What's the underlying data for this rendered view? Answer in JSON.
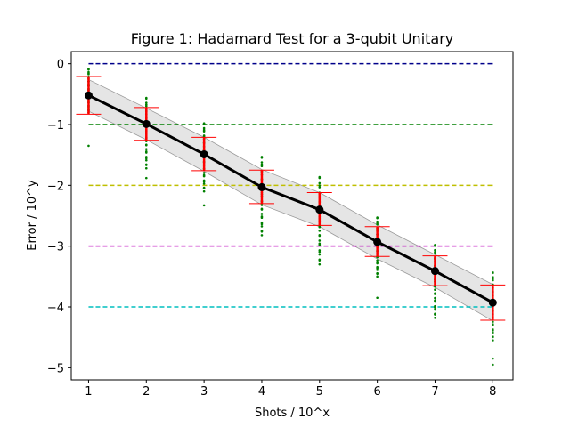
{
  "chart_data": {
    "type": "line",
    "title": "Figure 1: Hadamard Test for a 3-qubit Unitary",
    "xlabel": "Shots / 10^x",
    "ylabel": "Error / 10^y",
    "xlim": [
      0.7,
      8.35
    ],
    "ylim": [
      -5.2,
      0.2
    ],
    "x": [
      1,
      2,
      3,
      4,
      5,
      6,
      7,
      8
    ],
    "x_ticks": [
      1,
      2,
      3,
      4,
      5,
      6,
      7,
      8
    ],
    "y_ticks": [
      0,
      -1,
      -2,
      -3,
      -4,
      -5
    ],
    "y_tick_labels": [
      "0",
      "−1",
      "−2",
      "−3",
      "−4",
      "−5"
    ],
    "grid": false,
    "legend": "none",
    "mean_line": {
      "color": "#000000",
      "values": [
        -0.52,
        -0.99,
        -1.49,
        -2.03,
        -2.4,
        -2.93,
        -3.41,
        -3.93
      ]
    },
    "error_bars": {
      "color": "#ff0000",
      "upper": [
        -0.21,
        -0.72,
        -1.21,
        -1.75,
        -2.12,
        -2.68,
        -3.16,
        -3.64
      ],
      "lower": [
        -0.83,
        -1.26,
        -1.76,
        -2.3,
        -2.66,
        -3.17,
        -3.65,
        -4.22
      ]
    },
    "band": {
      "color": "#d3d3d3",
      "upper": [
        -0.26,
        -0.73,
        -1.21,
        -1.74,
        -2.12,
        -2.65,
        -3.14,
        -3.63
      ],
      "lower": [
        -0.78,
        -1.25,
        -1.77,
        -2.32,
        -2.68,
        -3.21,
        -3.68,
        -4.23
      ]
    },
    "samples": {
      "color": "#008000",
      "columns": [
        {
          "x": 1,
          "min": -0.8,
          "max": -0.08,
          "outliers": [
            -1.35
          ]
        },
        {
          "x": 2,
          "min": -1.72,
          "max": -0.55,
          "outliers": [
            -1.88
          ]
        },
        {
          "x": 3,
          "min": -2.1,
          "max": -0.97,
          "outliers": [
            -2.33
          ]
        },
        {
          "x": 4,
          "min": -2.82,
          "max": -1.52,
          "outliers": []
        },
        {
          "x": 5,
          "min": -3.3,
          "max": -1.85,
          "outliers": []
        },
        {
          "x": 6,
          "min": -3.5,
          "max": -2.52,
          "outliers": [
            -3.85
          ]
        },
        {
          "x": 7,
          "min": -4.18,
          "max": -2.97,
          "outliers": []
        },
        {
          "x": 8,
          "min": -4.55,
          "max": -3.42,
          "outliers": [
            -4.85,
            -4.95
          ]
        }
      ]
    },
    "reference_lines": [
      {
        "y": 0,
        "color": "#00008b"
      },
      {
        "y": -1,
        "color": "#008000"
      },
      {
        "y": -2,
        "color": "#bfbf00"
      },
      {
        "y": -3,
        "color": "#bf00bf"
      },
      {
        "y": -4,
        "color": "#00bfbf"
      }
    ]
  }
}
